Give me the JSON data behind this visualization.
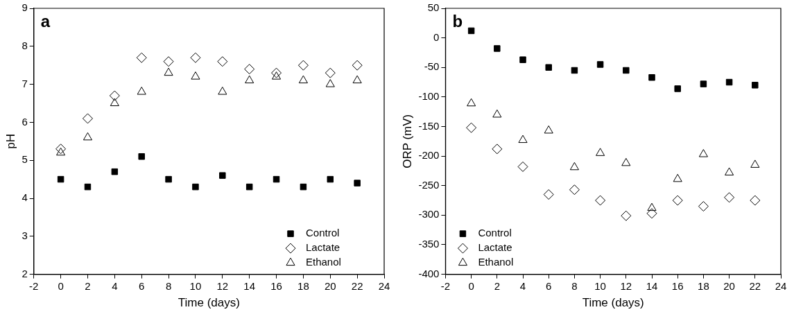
{
  "chart_data": [
    {
      "type": "scatter",
      "title": "a",
      "xlabel": "Time (days)",
      "ylabel": "pH",
      "x": [
        0,
        2,
        4,
        6,
        8,
        10,
        12,
        14,
        16,
        18,
        20,
        22
      ],
      "series": [
        {
          "name": "Control",
          "color": "#000000",
          "marker": "square",
          "values": [
            4.5,
            4.3,
            4.7,
            5.1,
            4.5,
            4.3,
            4.6,
            4.3,
            4.5,
            4.3,
            4.5,
            4.4
          ]
        },
        {
          "name": "Lactate",
          "color": "#000000",
          "marker": "diamond",
          "values": [
            5.3,
            6.1,
            6.7,
            7.7,
            7.6,
            7.7,
            7.6,
            7.4,
            7.3,
            7.5,
            7.3,
            7.5
          ]
        },
        {
          "name": "Ethanol",
          "color": "#000000",
          "marker": "triangle",
          "values": [
            5.2,
            5.6,
            6.5,
            6.8,
            7.3,
            7.2,
            6.8,
            7.1,
            7.2,
            7.1,
            7.0,
            7.1
          ]
        }
      ],
      "xlim": [
        -2,
        24
      ],
      "xticks": [
        -2,
        0,
        2,
        4,
        6,
        8,
        10,
        12,
        14,
        16,
        18,
        20,
        22,
        24
      ],
      "ylim": [
        2,
        9
      ],
      "yticks": [
        2,
        3,
        4,
        5,
        6,
        7,
        8,
        9
      ],
      "grid": false,
      "legend": "bottom right"
    },
    {
      "type": "scatter",
      "title": "b",
      "xlabel": "Time (days)",
      "ylabel": "ORP (mV)",
      "x": [
        0,
        2,
        4,
        6,
        8,
        10,
        12,
        14,
        16,
        18,
        20,
        22
      ],
      "series": [
        {
          "name": "Control",
          "color": "#000000",
          "marker": "square",
          "values": [
            12,
            -18,
            -37,
            -50,
            -55,
            -45,
            -55,
            -67,
            -86,
            -78,
            -75,
            -80
          ]
        },
        {
          "name": "Lactate",
          "color": "#000000",
          "marker": "diamond",
          "values": [
            -152,
            -188,
            -218,
            -265,
            -257,
            -275,
            -301,
            -297,
            -275,
            -285,
            -270,
            -275
          ]
        },
        {
          "name": "Ethanol",
          "color": "#000000",
          "marker": "triangle",
          "values": [
            -111,
            -130,
            -173,
            -157,
            -219,
            -195,
            -212,
            -288,
            -239,
            -197,
            -228,
            -215
          ]
        }
      ],
      "xlim": [
        -2,
        24
      ],
      "xticks": [
        -2,
        0,
        2,
        4,
        6,
        8,
        10,
        12,
        14,
        16,
        18,
        20,
        22,
        24
      ],
      "ylim": [
        -400,
        50
      ],
      "yticks": [
        -400,
        -350,
        -300,
        -250,
        -200,
        -150,
        -100,
        -50,
        0,
        50
      ],
      "grid": false,
      "legend": "bottom left"
    }
  ]
}
